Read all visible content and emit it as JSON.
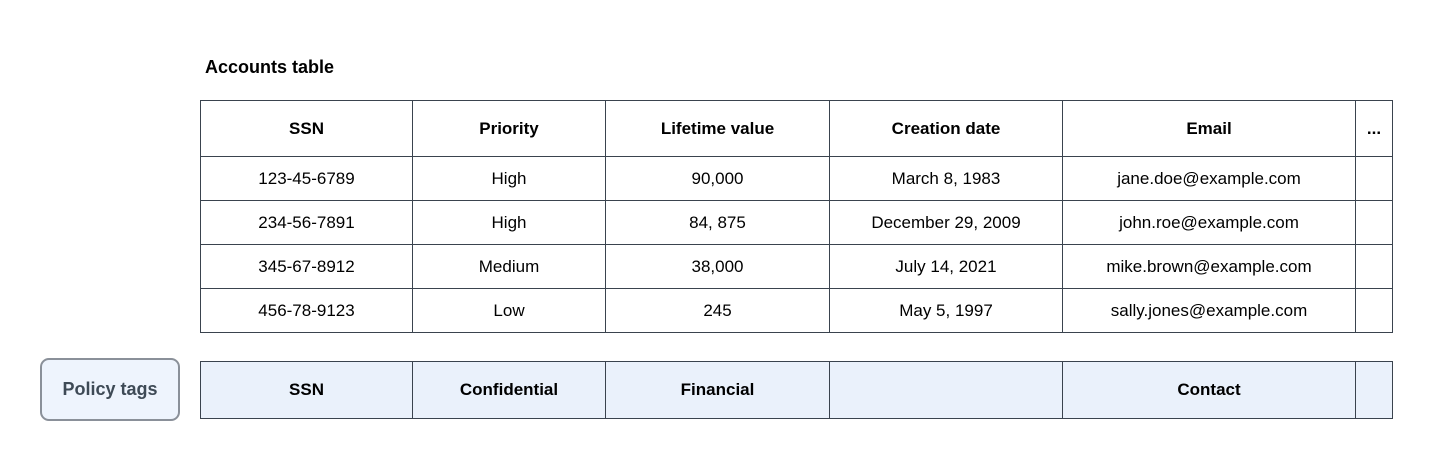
{
  "title": "Accounts table",
  "policy_button": {
    "label": "Policy tags"
  },
  "main_table": {
    "headers": [
      "SSN",
      "Priority",
      "Lifetime value",
      "Creation date",
      "Email",
      "..."
    ],
    "rows": [
      [
        "123-45-6789",
        "High",
        "90,000",
        "March 8, 1983",
        "jane.doe@example.com",
        ""
      ],
      [
        "234-56-7891",
        "High",
        "84, 875",
        "December 29, 2009",
        "john.roe@example.com",
        ""
      ],
      [
        "345-67-8912",
        "Medium",
        "38,000",
        "July 14, 2021",
        "mike.brown@example.com",
        ""
      ],
      [
        "456-78-9123",
        "Low",
        "245",
        "May 5, 1997",
        "sally.jones@example.com",
        ""
      ]
    ]
  },
  "policy_row": {
    "cells": [
      "SSN",
      "Confidential",
      "Financial",
      "",
      "Contact",
      ""
    ]
  },
  "colors": {
    "table_border": "#3a434e",
    "policy_fill": "#eaf1fb",
    "button_fill": "#eef4fd",
    "button_border": "#8a9099",
    "button_text": "#3e4a56"
  }
}
